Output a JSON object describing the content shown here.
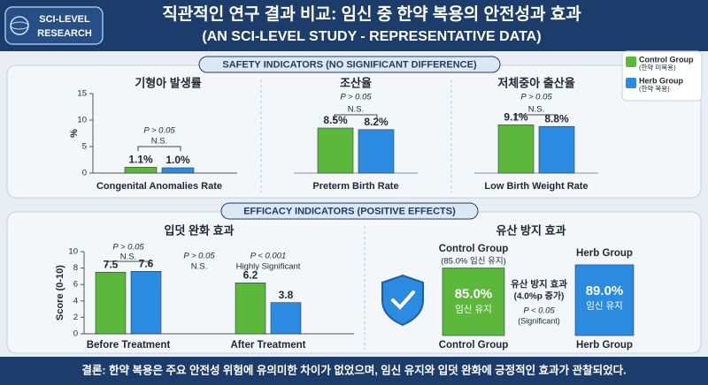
{
  "logo": {
    "line1": "SCI-LEVEL",
    "line2": "RESEARCH"
  },
  "header": {
    "title": "직관적인 연구 결과 비교: 임신 중 한약 복용의 안전성과 효과",
    "subtitle": "(AN SCI-LEVEL STUDY - REPRESENTATIVE DATA)"
  },
  "sections": [
    "SAFETY INDICATORS (NO SIGNIFICANT DIFFERENCE)",
    "EFFICACY INDICATORS (POSITIVE EFFECTS)"
  ],
  "legend": [
    {
      "name": "Control Group",
      "note": "(한약 미복용)",
      "color": "#5cb83a"
    },
    {
      "name": "Herb Group",
      "note": "(한약 복용)",
      "color": "#2b8be0"
    }
  ],
  "chart_data": [
    {
      "type": "bar",
      "title": "기형아 발생률",
      "x_label": "Congenital Anomalies Rate",
      "y_label": "%",
      "ylim": [
        0,
        15
      ],
      "yticks": [
        0,
        5,
        10,
        15
      ],
      "series": [
        {
          "color": "#5cb83a",
          "values": [
            1.1
          ],
          "value_labels": [
            "1.1%"
          ]
        },
        {
          "color": "#2b8be0",
          "values": [
            1.0
          ],
          "value_labels": [
            "1.0%"
          ]
        }
      ],
      "annotations": [
        "P > 0.05",
        "N.S."
      ]
    },
    {
      "type": "bar",
      "title": "조산율",
      "x_label": "Preterm Birth Rate",
      "ylim": [
        0,
        15
      ],
      "series": [
        {
          "color": "#5cb83a",
          "values": [
            8.5
          ],
          "value_labels": [
            "8.5%"
          ]
        },
        {
          "color": "#2b8be0",
          "values": [
            8.2
          ],
          "value_labels": [
            "8.2%"
          ]
        }
      ],
      "annotations": [
        "P > 0.05",
        "N.S."
      ]
    },
    {
      "type": "bar",
      "title": "저체중아 출산율",
      "x_label": "Low Birth Weight Rate",
      "ylim": [
        0,
        15
      ],
      "series": [
        {
          "color": "#5cb83a",
          "values": [
            9.1
          ],
          "value_labels": [
            "9.1%"
          ]
        },
        {
          "color": "#2b8be0",
          "values": [
            8.8
          ],
          "value_labels": [
            "8.8%"
          ]
        }
      ],
      "annotations": [
        "P > 0.05",
        "N.S."
      ]
    },
    {
      "type": "bar",
      "title": "입덧 완화 효과",
      "y_label": "Score (0-10)",
      "categories": [
        "Before Treatment",
        "After Treatment"
      ],
      "ylim": [
        0,
        10
      ],
      "yticks": [
        0,
        2,
        4,
        6,
        8,
        10
      ],
      "series": [
        {
          "color": "#5cb83a",
          "values": [
            7.5,
            6.2
          ]
        },
        {
          "color": "#2b8be0",
          "values": [
            7.6,
            3.8
          ]
        }
      ],
      "annotations": [
        "P > 0.05",
        "N.S.",
        "P > 0.05",
        "N.S.",
        "P < 0.001",
        "Highly Significant"
      ]
    },
    {
      "type": "comparison-bar",
      "title": "유산 방지 효과",
      "categories": [
        "Control Group",
        "Herb Group"
      ],
      "values": [
        85.0,
        89.0
      ],
      "value_labels": [
        "85.0%",
        "89.0%"
      ],
      "colors": [
        "#5cb83a",
        "#2b8be0"
      ],
      "bar_note": "임신 유지",
      "ylim": [
        0,
        100
      ],
      "annotations": [
        "(85.0% 임신 유지)",
        "(4.0%p 증가)",
        "P < 0.05",
        "(Significant)"
      ]
    }
  ],
  "conclusion": "결론: 한약 복용은 주요 안전성 위험에 유의미한 차이가 없었으며, 임신 유지와 입덧 완화에 긍정적인 효과가 관찰되었다."
}
